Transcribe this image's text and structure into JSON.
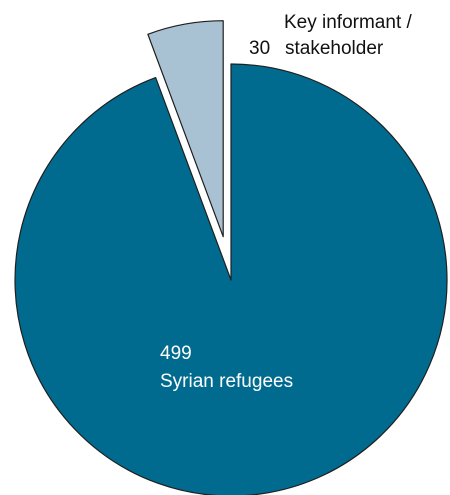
{
  "chart_data": {
    "type": "pie",
    "slices": [
      {
        "value": 499,
        "label": "Syrian refugees",
        "color": "#006b8f",
        "exploded": false
      },
      {
        "value": 30,
        "label": "Key informant / stakeholder",
        "color": "#a9c2d3",
        "exploded": true
      }
    ],
    "data_labels": {
      "main_value": "499",
      "main_name": "Syrian refugees",
      "small_value": "30",
      "small_name_line1": "Key informant /",
      "small_name_line2": "stakeholder"
    }
  }
}
